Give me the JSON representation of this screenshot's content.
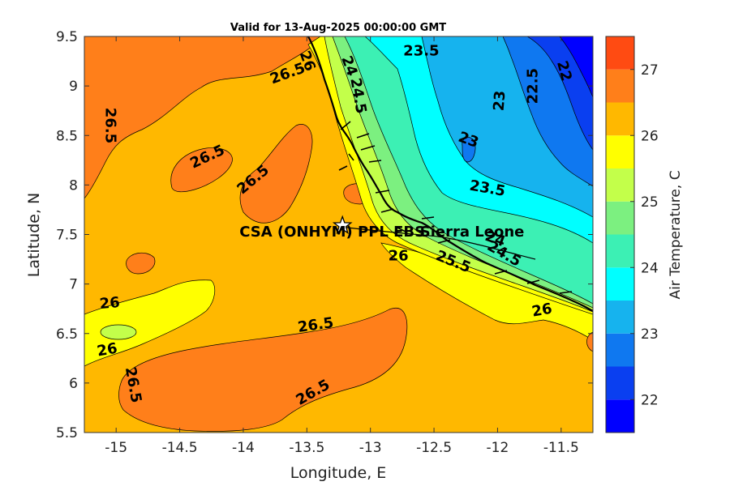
{
  "title": "Valid for 13-Aug-2025 00:00:00 GMT",
  "map": {
    "x_label": "Longitude, E",
    "y_label": "Latitude, N",
    "x_range": [
      -15.25,
      -11.25
    ],
    "y_range": [
      5.5,
      9.5
    ],
    "x_ticks": [
      -15,
      -14.5,
      -14,
      -13.5,
      -13,
      -12.5,
      -12,
      -11.5
    ],
    "y_ticks": [
      5.5,
      6,
      6.5,
      7,
      7.5,
      8,
      8.5,
      9,
      9.5
    ],
    "x_tick_labels": [
      "-15",
      "-14.5",
      "-14",
      "-13.5",
      "-13",
      "-12.5",
      "-12",
      "-11.5"
    ],
    "y_tick_labels": [
      "5.5",
      "6",
      "6.5",
      "7",
      "7.5",
      "8",
      "8.5",
      "9",
      "9.5"
    ],
    "contour_labels": [
      {
        "text": "26.5",
        "lon": -13.65,
        "lat": 9.12,
        "rot": -20
      },
      {
        "text": "26.5",
        "lon": -15.05,
        "lat": 8.6,
        "rot": 90
      },
      {
        "text": "26.5",
        "lon": -14.28,
        "lat": 8.28,
        "rot": -25
      },
      {
        "text": "26.5",
        "lon": -13.92,
        "lat": 8.05,
        "rot": -40
      },
      {
        "text": "26",
        "lon": -13.5,
        "lat": 9.25,
        "rot": 70
      },
      {
        "text": "24",
        "lon": -13.17,
        "lat": 9.2,
        "rot": 70
      },
      {
        "text": "24.5",
        "lon": -13.1,
        "lat": 8.9,
        "rot": 80
      },
      {
        "text": "23.5",
        "lon": -12.6,
        "lat": 9.35,
        "rot": 0
      },
      {
        "text": "23",
        "lon": -11.98,
        "lat": 8.85,
        "rot": -85
      },
      {
        "text": "22.5",
        "lon": -11.72,
        "lat": 9.0,
        "rot": -90
      },
      {
        "text": "22",
        "lon": -11.48,
        "lat": 9.15,
        "rot": 75
      },
      {
        "text": "23",
        "lon": -12.23,
        "lat": 8.45,
        "rot": 20
      },
      {
        "text": "23.5",
        "lon": -12.08,
        "lat": 7.96,
        "rot": 10
      },
      {
        "text": "26",
        "lon": -12.78,
        "lat": 7.28,
        "rot": 0
      },
      {
        "text": "25.5",
        "lon": -12.35,
        "lat": 7.22,
        "rot": 22
      },
      {
        "text": "24",
        "lon": -12.02,
        "lat": 7.45,
        "rot": 20
      },
      {
        "text": "24.5",
        "lon": -11.95,
        "lat": 7.3,
        "rot": 30
      },
      {
        "text": "26",
        "lon": -11.65,
        "lat": 6.73,
        "rot": -10
      },
      {
        "text": "26",
        "lon": -15.05,
        "lat": 6.8,
        "rot": -5
      },
      {
        "text": "26",
        "lon": -15.07,
        "lat": 6.33,
        "rot": -10
      },
      {
        "text": "26.5",
        "lon": -13.43,
        "lat": 6.58,
        "rot": -8
      },
      {
        "text": "26.5",
        "lon": -14.87,
        "lat": 5.98,
        "rot": 80
      },
      {
        "text": "26.5",
        "lon": -13.45,
        "lat": 5.9,
        "rot": -30
      }
    ],
    "site_marker": {
      "lon": -13.22,
      "lat": 7.59
    },
    "annotations": [
      {
        "text": "CSA (ONHYM) PPL EBS",
        "lon": -13.3,
        "lat": 7.48
      },
      {
        "text": "Sierra Leone",
        "lon": -12.2,
        "lat": 7.48
      }
    ]
  },
  "colorbar": {
    "label": "Air Temperature, C",
    "range": [
      21.5,
      27.5
    ],
    "levels": [
      {
        "from": 21.5,
        "to": 22.0,
        "color": "#0000ff"
      },
      {
        "from": 22.0,
        "to": 22.5,
        "color": "#0a3ff0"
      },
      {
        "from": 22.5,
        "to": 23.0,
        "color": "#0f78f0"
      },
      {
        "from": 23.0,
        "to": 23.5,
        "color": "#16b3ee"
      },
      {
        "from": 23.5,
        "to": 24.0,
        "color": "#00ffff"
      },
      {
        "from": 24.0,
        "to": 24.5,
        "color": "#3cf0b4"
      },
      {
        "from": 24.5,
        "to": 25.0,
        "color": "#7cf080"
      },
      {
        "from": 25.0,
        "to": 25.5,
        "color": "#c3ff4a"
      },
      {
        "from": 25.5,
        "to": 26.0,
        "color": "#ffff00"
      },
      {
        "from": 26.0,
        "to": 26.5,
        "color": "#ffb800"
      },
      {
        "from": 26.5,
        "to": 27.0,
        "color": "#ff7f1a"
      },
      {
        "from": 27.0,
        "to": 27.5,
        "color": "#ff4b12"
      },
      {
        "from": 27.5,
        "to": 28.0,
        "color": "#ff0000"
      }
    ],
    "ticks": [
      22,
      23,
      24,
      25,
      26,
      27
    ],
    "tick_labels": [
      "22",
      "23",
      "24",
      "25",
      "26",
      "27"
    ]
  }
}
